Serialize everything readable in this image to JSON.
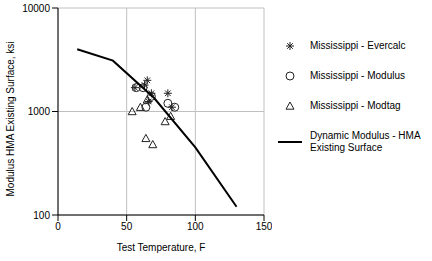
{
  "chart_data": {
    "type": "scatter",
    "xlabel": "Test Temperature, F",
    "ylabel": "Modulus HMA Existing Surface, ksi",
    "xlim": [
      0,
      150
    ],
    "xticks": [
      0,
      50,
      100,
      150
    ],
    "ylim": [
      100,
      10000
    ],
    "yticks": [
      100,
      1000,
      10000
    ],
    "log": "y",
    "grid": true,
    "legend": "right",
    "series": [
      {
        "name": "Mississippi - Evercalc",
        "color": "#222222",
        "marker": "asterisk",
        "x": [
          56,
          63,
          65,
          66,
          68,
          80,
          83
        ],
        "values": [
          1700,
          1800,
          2000,
          1250,
          1500,
          1500,
          1100
        ]
      },
      {
        "name": "Mississippi - Modulus",
        "color": "#222222",
        "marker": "circle",
        "x": [
          57,
          62,
          64,
          68,
          80,
          85
        ],
        "values": [
          1700,
          1700,
          1100,
          1400,
          1200,
          1100
        ]
      },
      {
        "name": "Mississippi - Modtag",
        "color": "#222222",
        "marker": "triangle",
        "x": [
          54,
          60,
          64,
          65,
          69,
          78,
          82
        ],
        "values": [
          1000,
          1100,
          550,
          1300,
          480,
          800,
          900
        ]
      },
      {
        "name": "Dynamic Modulus - HMA Existing Surface",
        "color": "#000000",
        "type": "line",
        "x": [
          14,
          40,
          70,
          100,
          130
        ],
        "values": [
          4000,
          3100,
          1350,
          450,
          120
        ]
      }
    ]
  }
}
